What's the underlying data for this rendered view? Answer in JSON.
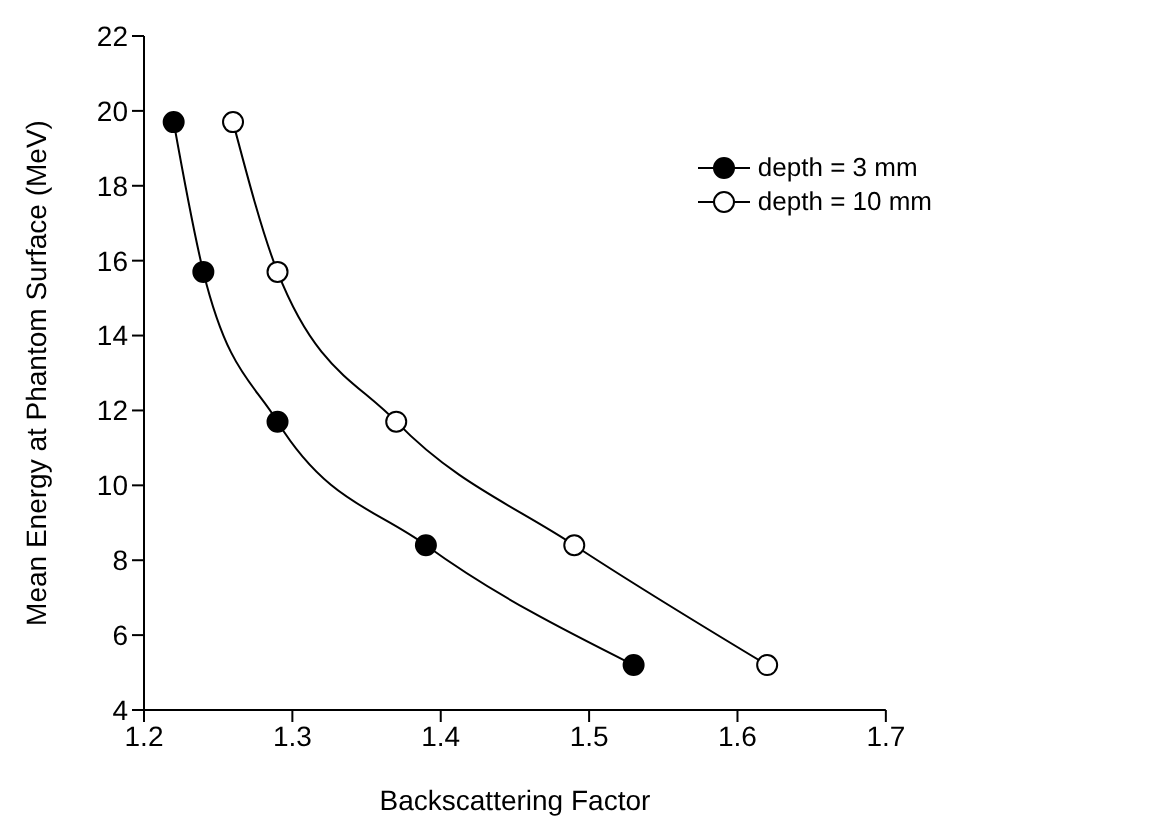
{
  "chart_data": {
    "type": "line",
    "xlabel": "Backscattering Factor",
    "ylabel": "Mean Energy at Phantom Surface (MeV)",
    "series": [
      {
        "name": "depth = 3 mm",
        "color": "#000000",
        "x": [
          1.22,
          1.24,
          1.29,
          1.39,
          1.53
        ],
        "values": [
          19.7,
          15.7,
          11.7,
          8.4,
          5.2
        ]
      },
      {
        "name": "depth = 10 mm",
        "color": "#000000",
        "x": [
          1.26,
          1.29,
          1.37,
          1.49,
          1.62
        ],
        "values": [
          19.7,
          15.7,
          11.7,
          8.4,
          5.2
        ]
      }
    ],
    "xlim": [
      1.2,
      1.7
    ],
    "xticks": [
      1.2,
      1.3,
      1.4,
      1.5,
      1.6,
      1.7
    ],
    "ylim": [
      4,
      22
    ],
    "yticks": [
      4,
      6,
      8,
      10,
      12,
      14,
      16,
      18,
      20,
      22
    ],
    "marker": "circle",
    "legend": "top right",
    "grid": false
  }
}
